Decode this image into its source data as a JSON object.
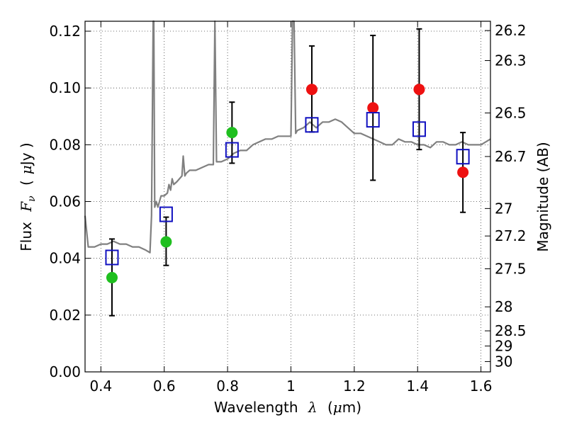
{
  "chart_data": {
    "type": "scatter",
    "xlabel": "Wavelength",
    "xlabel_symbol": "λ",
    "xlabel_unit_open": "(",
    "xlabel_unit_mu": "μ",
    "xlabel_unit_rest": "m)",
    "ylabel_prefix": "Flux",
    "ylabel_symbol": "F",
    "ylabel_subscript": "ν",
    "ylabel_unit_open": "(",
    "ylabel_unit_mu": "μ",
    "ylabel_unit_rest": "Jy )",
    "y2label": "Magnitude (AB)",
    "xlim": [
      0.35,
      1.63
    ],
    "ylim": [
      0.0,
      0.1235
    ],
    "grid": true,
    "x_ticks": [
      0.4,
      0.6,
      0.8,
      1.0,
      1.2,
      1.4,
      1.6
    ],
    "x_tick_labels": [
      "0.4",
      "0.6",
      "0.8",
      "1",
      "1.2",
      "1.4",
      "1.6"
    ],
    "y_ticks": [
      0.0,
      0.02,
      0.04,
      0.06,
      0.08,
      0.1,
      0.12
    ],
    "y_tick_labels": [
      "0.00",
      "0.02",
      "0.04",
      "0.06",
      "0.08",
      "0.10",
      "0.12"
    ],
    "y2_tick_labels": [
      "26.2",
      "26.3",
      "26.5",
      "26.7",
      "27",
      "27.2",
      "27.5",
      "28",
      "28.5",
      "29",
      "30"
    ],
    "y2_tick_values": [
      26.2,
      26.3,
      26.5,
      26.7,
      27,
      27.2,
      27.5,
      28,
      28.5,
      29,
      30
    ],
    "series": [
      {
        "name": "observed-green",
        "color": "#1fbf1f",
        "marker": "circle",
        "points": [
          {
            "x": 0.435,
            "y": 0.0332,
            "err_lo": 0.0198,
            "err_hi": 0.0468
          },
          {
            "x": 0.606,
            "y": 0.0458,
            "err_lo": 0.0375,
            "err_hi": 0.0545
          },
          {
            "x": 0.814,
            "y": 0.0843,
            "err_lo": 0.0735,
            "err_hi": 0.095
          }
        ]
      },
      {
        "name": "observed-red",
        "color": "#ee1111",
        "marker": "circle",
        "points": [
          {
            "x": 1.066,
            "y": 0.0995,
            "err_lo": 0.0845,
            "err_hi": 0.1148
          },
          {
            "x": 1.259,
            "y": 0.093,
            "err_lo": 0.0675,
            "err_hi": 0.1185
          },
          {
            "x": 1.405,
            "y": 0.0995,
            "err_lo": 0.0783,
            "err_hi": 0.1208
          },
          {
            "x": 1.543,
            "y": 0.0703,
            "err_lo": 0.0562,
            "err_hi": 0.0843
          }
        ]
      },
      {
        "name": "model-photometry",
        "color": "#1010c0",
        "marker": "square-open",
        "points": [
          {
            "x": 0.435,
            "y": 0.0403
          },
          {
            "x": 0.606,
            "y": 0.0555
          },
          {
            "x": 0.814,
            "y": 0.0782
          },
          {
            "x": 1.066,
            "y": 0.087
          },
          {
            "x": 1.259,
            "y": 0.0888
          },
          {
            "x": 1.405,
            "y": 0.0855
          },
          {
            "x": 1.543,
            "y": 0.0758
          }
        ]
      },
      {
        "name": "model-spectrum",
        "color": "#808080",
        "type": "line",
        "x": [
          0.35,
          0.36,
          0.38,
          0.4,
          0.42,
          0.44,
          0.46,
          0.48,
          0.5,
          0.52,
          0.54,
          0.555,
          0.56,
          0.565,
          0.567,
          0.57,
          0.575,
          0.58,
          0.585,
          0.59,
          0.6,
          0.61,
          0.615,
          0.62,
          0.625,
          0.63,
          0.64,
          0.656,
          0.66,
          0.665,
          0.67,
          0.68,
          0.7,
          0.72,
          0.74,
          0.755,
          0.76,
          0.765,
          0.78,
          0.8,
          0.82,
          0.84,
          0.86,
          0.88,
          0.9,
          0.92,
          0.94,
          0.96,
          0.98,
          1.0,
          1.005,
          1.01,
          1.015,
          1.02,
          1.04,
          1.06,
          1.08,
          1.1,
          1.12,
          1.14,
          1.16,
          1.18,
          1.2,
          1.22,
          1.24,
          1.26,
          1.28,
          1.3,
          1.32,
          1.34,
          1.36,
          1.38,
          1.4,
          1.42,
          1.44,
          1.46,
          1.48,
          1.5,
          1.52,
          1.54,
          1.56,
          1.58,
          1.6,
          1.63
        ],
        "y": [
          0.055,
          0.044,
          0.044,
          0.045,
          0.045,
          0.046,
          0.045,
          0.045,
          0.044,
          0.044,
          0.043,
          0.042,
          0.055,
          0.1235,
          0.1235,
          0.058,
          0.06,
          0.058,
          0.06,
          0.062,
          0.062,
          0.063,
          0.066,
          0.064,
          0.068,
          0.066,
          0.067,
          0.069,
          0.076,
          0.069,
          0.07,
          0.071,
          0.071,
          0.072,
          0.073,
          0.073,
          0.1235,
          0.074,
          0.074,
          0.075,
          0.077,
          0.078,
          0.078,
          0.08,
          0.081,
          0.082,
          0.082,
          0.083,
          0.083,
          0.083,
          0.1235,
          0.1235,
          0.084,
          0.085,
          0.086,
          0.088,
          0.086,
          0.088,
          0.088,
          0.089,
          0.088,
          0.086,
          0.084,
          0.084,
          0.083,
          0.082,
          0.081,
          0.08,
          0.08,
          0.082,
          0.081,
          0.081,
          0.08,
          0.08,
          0.079,
          0.081,
          0.081,
          0.08,
          0.08,
          0.081,
          0.08,
          0.08,
          0.08,
          0.082
        ]
      }
    ]
  }
}
